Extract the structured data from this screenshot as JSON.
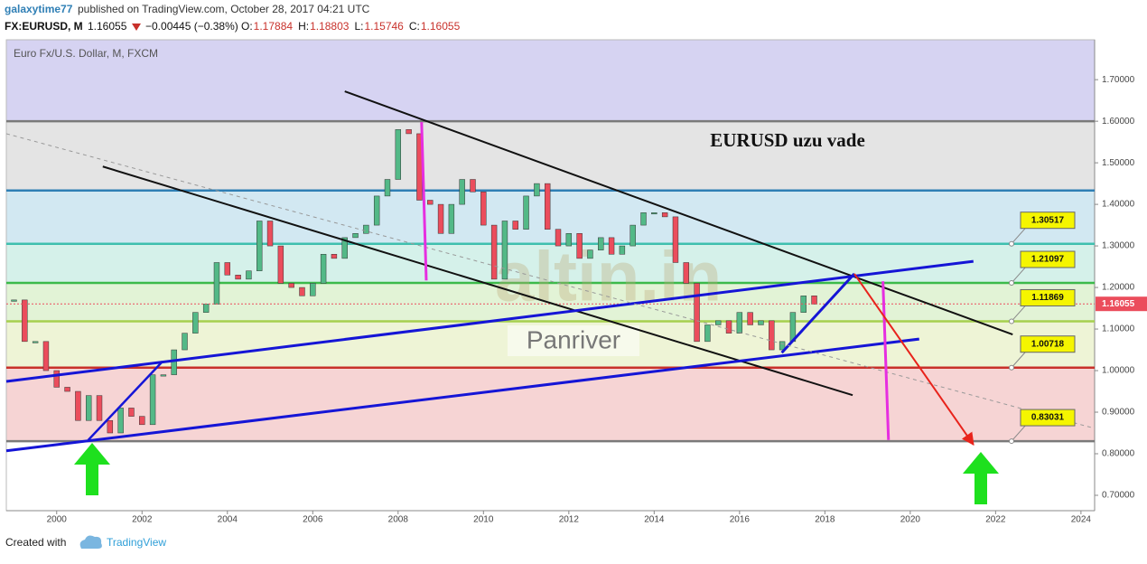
{
  "header": {
    "author": "galaxytime77",
    "published": "published on TradingView.com, October 28, 2017 04:21 UTC",
    "symbol": "FX:EURUSD, M",
    "last": "1.16055",
    "change": "−0.00445 (−0.38%)",
    "ohlc": [
      {
        "label": "O:",
        "value": "1.17884"
      },
      {
        "label": "H:",
        "value": "1.18803"
      },
      {
        "label": "L:",
        "value": "1.15746"
      },
      {
        "label": "C:",
        "value": "1.16055"
      }
    ]
  },
  "chart_data": {
    "type": "candlestick",
    "title": "EURUSD  uzu vade",
    "subtitle": "Euro Fx/U.S. Dollar, M, FXCM",
    "x": [
      1999.0,
      1999.25,
      1999.5,
      1999.75,
      2000.0,
      2000.25,
      2000.5,
      2000.75,
      2001.0,
      2001.25,
      2001.5,
      2001.75,
      2002.0,
      2002.25,
      2002.5,
      2002.75,
      2003.0,
      2003.25,
      2003.5,
      2003.75,
      2004.0,
      2004.25,
      2004.5,
      2004.75,
      2005.0,
      2005.25,
      2005.5,
      2005.75,
      2006.0,
      2006.25,
      2006.5,
      2006.75,
      2007.0,
      2007.25,
      2007.5,
      2007.75,
      2008.0,
      2008.25,
      2008.5,
      2008.75,
      2009.0,
      2009.25,
      2009.5,
      2009.75,
      2010.0,
      2010.25,
      2010.5,
      2010.75,
      2011.0,
      2011.25,
      2011.5,
      2011.75,
      2012.0,
      2012.25,
      2012.5,
      2012.75,
      2013.0,
      2013.25,
      2013.5,
      2013.75,
      2014.0,
      2014.25,
      2014.5,
      2014.75,
      2015.0,
      2015.25,
      2015.5,
      2015.75,
      2016.0,
      2016.25,
      2016.5,
      2016.75,
      2017.0,
      2017.25,
      2017.5,
      2017.75
    ],
    "values": [
      1.17,
      1.07,
      1.07,
      1.0,
      0.96,
      0.95,
      0.88,
      0.94,
      0.88,
      0.85,
      0.91,
      0.89,
      0.87,
      0.99,
      0.99,
      1.05,
      1.09,
      1.14,
      1.16,
      1.26,
      1.23,
      1.22,
      1.24,
      1.36,
      1.3,
      1.21,
      1.2,
      1.18,
      1.21,
      1.28,
      1.27,
      1.32,
      1.33,
      1.35,
      1.42,
      1.46,
      1.58,
      1.57,
      1.41,
      1.4,
      1.33,
      1.4,
      1.46,
      1.43,
      1.35,
      1.22,
      1.36,
      1.34,
      1.42,
      1.45,
      1.34,
      1.3,
      1.33,
      1.27,
      1.29,
      1.32,
      1.28,
      1.3,
      1.35,
      1.38,
      1.38,
      1.37,
      1.26,
      1.21,
      1.07,
      1.11,
      1.12,
      1.09,
      1.14,
      1.11,
      1.12,
      1.05,
      1.07,
      1.14,
      1.18,
      1.16
    ],
    "up_color": "#53b987",
    "down_color": "#eb4d5c",
    "last": 1.16055,
    "last_color": "#eb4d5c",
    "xlim": [
      1998.82,
      2024.32
    ],
    "xticks": [
      2000,
      2002,
      2004,
      2006,
      2008,
      2010,
      2012,
      2014,
      2016,
      2018,
      2020,
      2022,
      2024
    ],
    "ylim": [
      0.663,
      1.796
    ],
    "yticks": [
      {
        "value": 0.7,
        "label": "0.70000"
      },
      {
        "value": 0.8,
        "label": "0.80000"
      },
      {
        "value": 0.9,
        "label": "0.90000"
      },
      {
        "value": 1.0,
        "label": "1.00000"
      },
      {
        "value": 1.1,
        "label": "1.10000"
      },
      {
        "value": 1.2,
        "label": "1.20000"
      },
      {
        "value": 1.3,
        "label": "1.30000"
      },
      {
        "value": 1.4,
        "label": "1.40000"
      },
      {
        "value": 1.5,
        "label": "1.50000"
      },
      {
        "value": 1.6,
        "label": "1.60000"
      },
      {
        "value": 1.7,
        "label": "1.70000"
      }
    ],
    "top_band_color": "#d6d3f2",
    "levels": [
      {
        "value": 1.6,
        "color": "#7a7a7a",
        "band_color": "#e4e4e4",
        "labeled": false
      },
      {
        "value": 1.4335,
        "color": "#2f7fb5",
        "band_color": "#d2e8f2",
        "labeled": false
      },
      {
        "value": 1.30517,
        "color": "#3fbfae",
        "band_color": "#d5f1ea",
        "labeled": true
      },
      {
        "value": 1.21097,
        "color": "#3cba4a",
        "band_color": "#e2f3d6",
        "labeled": true
      },
      {
        "value": 1.11869,
        "color": "#a6d04f",
        "band_color": "#eef4d6",
        "labeled": true
      },
      {
        "value": 1.00718,
        "color": "#c8312b",
        "band_color": "#f6d4d4",
        "labeled": true
      },
      {
        "value": 0.83031,
        "color": "#7a7a7a",
        "band_color": "#ffffff",
        "labeled": true
      }
    ],
    "trendlines": [
      {
        "from": [
          2006.75,
          1.672
        ],
        "to": [
          2022.4,
          1.087
        ],
        "color": "#111111",
        "width": 2,
        "dashed": false,
        "arrow": false
      },
      {
        "from": [
          2001.08,
          1.491
        ],
        "to": [
          2018.65,
          0.941
        ],
        "color": "#111111",
        "width": 2,
        "dashed": false,
        "arrow": false
      },
      {
        "from": [
          1998.82,
          0.974
        ],
        "to": [
          2021.48,
          1.263
        ],
        "color": "#1515d6",
        "width": 3,
        "dashed": false,
        "arrow": false
      },
      {
        "from": [
          1998.82,
          0.807
        ],
        "to": [
          2020.21,
          1.076
        ],
        "color": "#1515d6",
        "width": 3,
        "dashed": false,
        "arrow": false
      },
      {
        "from": [
          2000.74,
          0.833
        ],
        "to": [
          2002.48,
          1.022
        ],
        "color": "#1515d6",
        "width": 2.5,
        "dashed": false,
        "arrow": false
      },
      {
        "from": [
          2016.99,
          1.043
        ],
        "to": [
          2018.69,
          1.233
        ],
        "color": "#1515d6",
        "width": 3,
        "dashed": false,
        "arrow": false
      },
      {
        "from": [
          1998.82,
          1.57
        ],
        "to": [
          2024.32,
          0.861
        ],
        "color": "#999999",
        "width": 1,
        "dashed": true,
        "arrow": false
      },
      {
        "from": [
          2008.55,
          1.598
        ],
        "to": [
          2008.66,
          1.217
        ],
        "color": "#e62ee0",
        "width": 3,
        "dashed": false,
        "arrow": false
      },
      {
        "from": [
          2019.36,
          1.215
        ],
        "to": [
          2019.49,
          0.833
        ],
        "color": "#e62ee0",
        "width": 3,
        "dashed": false,
        "arrow": false
      },
      {
        "from": [
          2018.69,
          1.233
        ],
        "to": [
          2021.48,
          0.822
        ],
        "color": "#e8231b",
        "width": 2,
        "dashed": false,
        "arrow": true
      }
    ],
    "watermarks": [
      "altin.in",
      "Panriver"
    ]
  },
  "footer": {
    "created": "Created with",
    "brand": "TradingView"
  }
}
